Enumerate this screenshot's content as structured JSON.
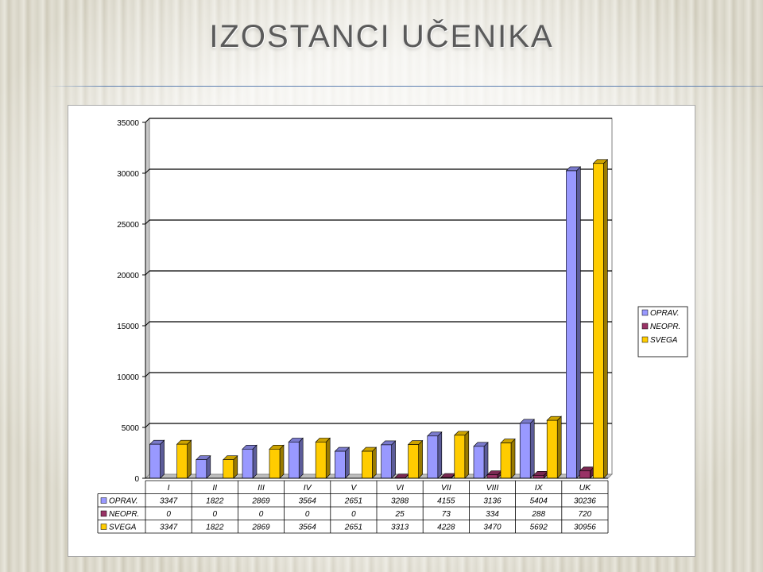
{
  "slide": {
    "title": "Izostanci učenika"
  },
  "chart_data": {
    "type": "bar",
    "categories": [
      "I",
      "II",
      "III",
      "IV",
      "V",
      "VI",
      "VII",
      "VIII",
      "IX",
      "UK"
    ],
    "series": [
      {
        "name": "OPRAV.",
        "color": "#9999ff",
        "values": [
          3347,
          1822,
          2869,
          3564,
          2651,
          3288,
          4155,
          3136,
          5404,
          30236
        ]
      },
      {
        "name": "NEOPR.",
        "color": "#993366",
        "values": [
          0,
          0,
          0,
          0,
          0,
          25,
          73,
          334,
          288,
          720
        ]
      },
      {
        "name": "SVEGA",
        "color": "#ffcc00",
        "values": [
          3347,
          1822,
          2869,
          3564,
          2651,
          3313,
          4228,
          3470,
          5692,
          30956
        ]
      }
    ],
    "ylim": [
      0,
      35000
    ],
    "yticks": [
      0,
      5000,
      10000,
      15000,
      20000,
      25000,
      30000,
      35000
    ],
    "grid": true,
    "legend": "right",
    "data_table": true
  }
}
